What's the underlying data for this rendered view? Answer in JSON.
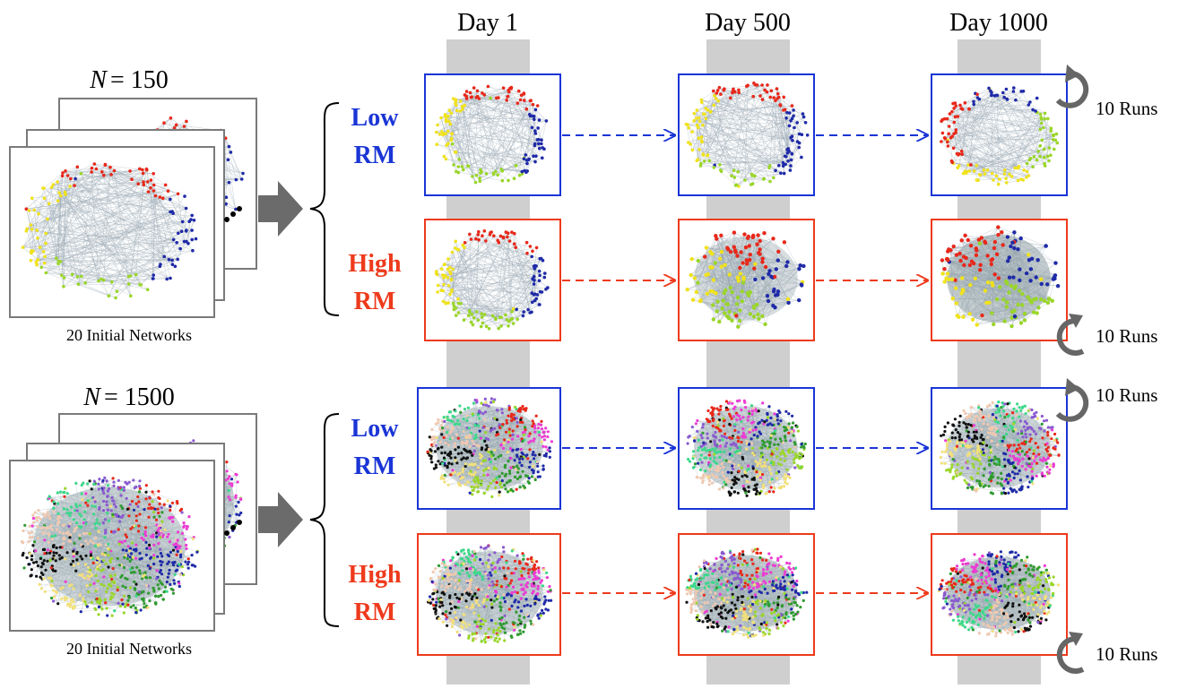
{
  "columns": {
    "day1": "Day 1",
    "day500": "Day 500",
    "day1000": "Day 1000"
  },
  "top_group": {
    "n_symbol": "N",
    "n_value": "= 150",
    "stack_caption": "20 Initial Networks",
    "low_line1": "Low",
    "low_line2": "RM",
    "high_line1": "High",
    "high_line2": "RM",
    "runs_top": "10 Runs",
    "runs_bottom": "10 Runs"
  },
  "bottom_group": {
    "n_symbol": "N",
    "n_value": "= 1500",
    "stack_caption": "20 Initial Networks",
    "low_line1": "Low",
    "low_line2": "RM",
    "high_line1": "High",
    "high_line2": "RM",
    "runs_top": "10 Runs",
    "runs_bottom": "10 Runs"
  },
  "colors": {
    "low": "#1a35d6",
    "high": "#ee3a1c",
    "band": "#cfcfcf",
    "edge": "#9aaab4",
    "frame": "#7a7a7a",
    "arrow_block": "#6b6b6b",
    "runs_arrow": "#666666"
  },
  "community_colors_small": [
    "#1f2aa8",
    "#9ad629",
    "#f0e21c",
    "#e8281a"
  ],
  "community_colors_large": [
    "#e8281a",
    "#ec3bd3",
    "#1f2aa8",
    "#2f9a2f",
    "#9ad629",
    "#f2e07a",
    "#111111",
    "#f0c8b0",
    "#3cd88a",
    "#8a5ad0"
  ]
}
